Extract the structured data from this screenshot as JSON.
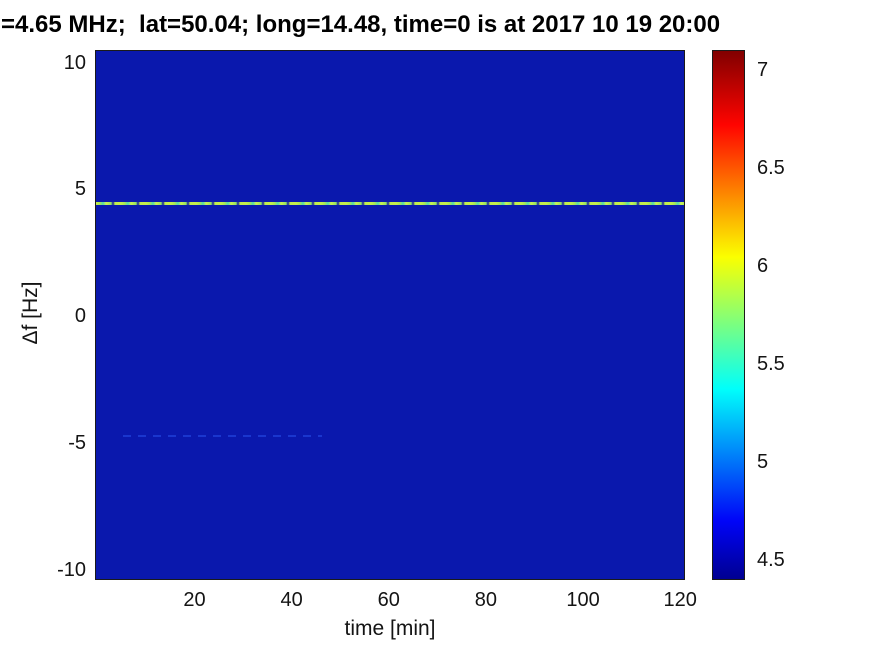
{
  "chart_data": {
    "type": "heatmap",
    "title": "=4.65 MHz;  lat=50.04; long=14.48, time=0 is at 2017 10 19 20:00",
    "xlabel": "time [min]",
    "ylabel": "Δf [Hz]",
    "xlim": [
      -0.5,
      121
    ],
    "ylim": [
      -10.4,
      10.5
    ],
    "xticks": [
      20,
      40,
      60,
      80,
      100,
      120
    ],
    "yticks": [
      10,
      5,
      0,
      -5,
      -10
    ],
    "grid": false,
    "background_value": 4.4,
    "background_color": "#0a18ad",
    "colorbar": {
      "position": "right",
      "range": [
        4.4,
        7.1
      ],
      "ticks": [
        4.5,
        5,
        5.5,
        6,
        6.5,
        7
      ],
      "colormap": "jet"
    },
    "features": [
      {
        "name": "carrier-line",
        "description": "bright dashed horizontal spectral line spanning full time range",
        "y": 4.5,
        "x_start": -0.5,
        "x_end": 121,
        "value": 6.1,
        "color": "#b8ea4f"
      },
      {
        "name": "doppler-trace",
        "description": "faint dashed horizontal trace slightly brighter than background",
        "y": -4.7,
        "x_start": 5,
        "x_end": 46,
        "value": 4.8,
        "color": "#1d3bd4"
      }
    ]
  }
}
